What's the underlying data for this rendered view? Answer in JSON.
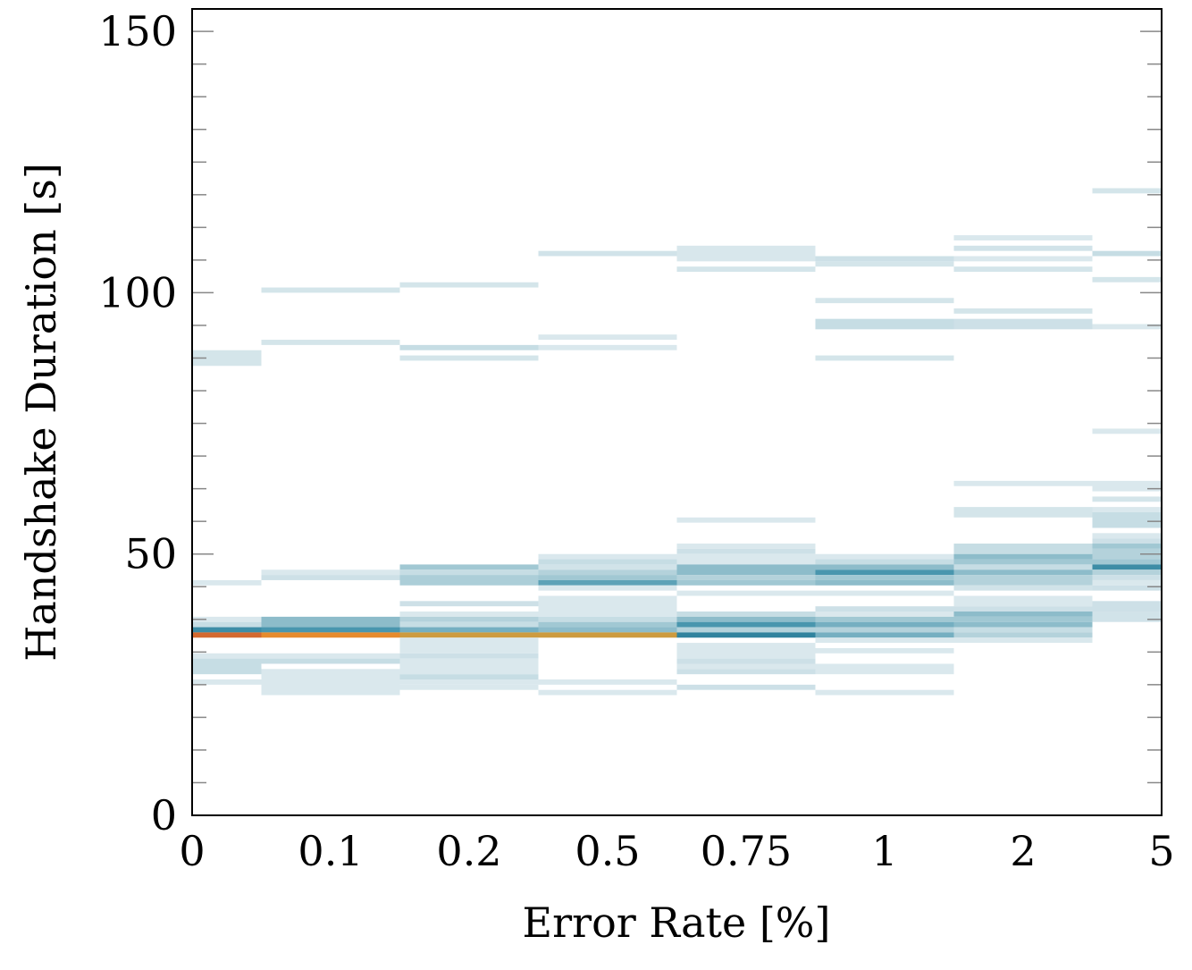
{
  "chart_data": {
    "type": "heatmap",
    "title": "",
    "xlabel": "Error Rate [%]",
    "ylabel": "Handshake Duration [s]",
    "categories": [
      "0",
      "0.1",
      "0.2",
      "0.5",
      "0.75",
      "1",
      "2",
      "5"
    ],
    "ylim": [
      0,
      154.3
    ],
    "yticks": [
      0,
      50,
      100,
      150
    ],
    "yminor_step": 6.25,
    "bin_size": 1,
    "grid": false,
    "colormap": [
      "#e3edf1",
      "#c9dee5",
      "#94c0cd",
      "#4f9ab2",
      "#2a7f9a",
      "#c4a045",
      "#e88a2c",
      "#d4692f"
    ],
    "columns": [
      {
        "category": "0",
        "cells": [
          [
            44,
            45,
            0.05
          ],
          [
            37,
            38,
            0.05
          ],
          [
            36,
            37,
            0.15
          ],
          [
            35,
            36,
            0.5
          ],
          [
            34,
            35,
            1.0
          ],
          [
            30,
            31,
            0.05
          ],
          [
            27,
            30,
            0.15
          ],
          [
            25,
            26,
            0.05
          ],
          [
            86,
            89,
            0.08
          ]
        ]
      },
      {
        "category": "0.1",
        "cells": [
          [
            46,
            47,
            0.05
          ],
          [
            45,
            46,
            0.12
          ],
          [
            36,
            38,
            0.3
          ],
          [
            35,
            36,
            0.45
          ],
          [
            34,
            35,
            0.85
          ],
          [
            30,
            31,
            0.05
          ],
          [
            29,
            30,
            0.15
          ],
          [
            23,
            28,
            0.05
          ],
          [
            90,
            91,
            0.08
          ],
          [
            100,
            101,
            0.08
          ]
        ]
      },
      {
        "category": "0.2",
        "cells": [
          [
            47,
            48,
            0.25
          ],
          [
            46,
            47,
            0.15
          ],
          [
            44,
            46,
            0.22
          ],
          [
            40,
            41,
            0.12
          ],
          [
            38,
            39,
            0.05
          ],
          [
            37,
            38,
            0.2
          ],
          [
            36,
            37,
            0.15
          ],
          [
            35,
            36,
            0.35
          ],
          [
            34,
            35,
            0.75
          ],
          [
            31,
            34,
            0.05
          ],
          [
            30,
            31,
            0.12
          ],
          [
            27,
            30,
            0.05
          ],
          [
            26,
            27,
            0.15
          ],
          [
            25,
            26,
            0.05
          ],
          [
            24,
            25,
            0.05
          ],
          [
            87,
            88,
            0.08
          ],
          [
            89,
            90,
            0.15
          ],
          [
            101,
            102,
            0.08
          ]
        ]
      },
      {
        "category": "0.5",
        "cells": [
          [
            49,
            50,
            0.05
          ],
          [
            48,
            49,
            0.15
          ],
          [
            47,
            48,
            0.1
          ],
          [
            46,
            47,
            0.2
          ],
          [
            45,
            46,
            0.25
          ],
          [
            44,
            45,
            0.4
          ],
          [
            43,
            44,
            0.05
          ],
          [
            38,
            42,
            0.05
          ],
          [
            37,
            38,
            0.15
          ],
          [
            36,
            37,
            0.25
          ],
          [
            35,
            36,
            0.3
          ],
          [
            34,
            35,
            0.75
          ],
          [
            25,
            26,
            0.05
          ],
          [
            23,
            24,
            0.05
          ],
          [
            107,
            108,
            0.1
          ],
          [
            91,
            92,
            0.05
          ],
          [
            89,
            90,
            0.05
          ]
        ]
      },
      {
        "category": "0.75",
        "cells": [
          [
            51,
            52,
            0.05
          ],
          [
            50,
            51,
            0.12
          ],
          [
            48,
            50,
            0.05
          ],
          [
            46,
            48,
            0.3
          ],
          [
            45,
            46,
            0.2
          ],
          [
            44,
            45,
            0.25
          ],
          [
            42,
            43,
            0.05
          ],
          [
            38,
            39,
            0.15
          ],
          [
            37,
            38,
            0.3
          ],
          [
            36,
            37,
            0.45
          ],
          [
            35,
            36,
            0.2
          ],
          [
            34,
            35,
            0.55
          ],
          [
            30,
            33,
            0.05
          ],
          [
            29,
            30,
            0.12
          ],
          [
            28,
            29,
            0.05
          ],
          [
            27,
            28,
            0.12
          ],
          [
            24,
            25,
            0.12
          ],
          [
            56,
            57,
            0.05
          ],
          [
            106,
            109,
            0.06
          ],
          [
            104,
            105,
            0.08
          ]
        ]
      },
      {
        "category": "1",
        "cells": [
          [
            49,
            50,
            0.05
          ],
          [
            48,
            49,
            0.15
          ],
          [
            47,
            48,
            0.3
          ],
          [
            46,
            47,
            0.45
          ],
          [
            45,
            46,
            0.25
          ],
          [
            44,
            45,
            0.3
          ],
          [
            42,
            43,
            0.05
          ],
          [
            39,
            40,
            0.12
          ],
          [
            38,
            39,
            0.05
          ],
          [
            37,
            38,
            0.25
          ],
          [
            36,
            37,
            0.35
          ],
          [
            35,
            36,
            0.2
          ],
          [
            34,
            35,
            0.35
          ],
          [
            33,
            34,
            0.05
          ],
          [
            31,
            32,
            0.05
          ],
          [
            27,
            29,
            0.05
          ],
          [
            23,
            24,
            0.05
          ],
          [
            106,
            107,
            0.12
          ],
          [
            105,
            106,
            0.08
          ],
          [
            98,
            99,
            0.08
          ],
          [
            93,
            95,
            0.15
          ],
          [
            87,
            88,
            0.08
          ]
        ]
      },
      {
        "category": "2",
        "cells": [
          [
            63,
            64,
            0.05
          ],
          [
            57,
            59,
            0.08
          ],
          [
            50,
            52,
            0.15
          ],
          [
            49,
            50,
            0.3
          ],
          [
            48,
            49,
            0.25
          ],
          [
            47,
            48,
            0.15
          ],
          [
            46,
            47,
            0.3
          ],
          [
            44,
            46,
            0.2
          ],
          [
            43,
            44,
            0.1
          ],
          [
            40,
            42,
            0.05
          ],
          [
            39,
            40,
            0.12
          ],
          [
            38,
            39,
            0.3
          ],
          [
            37,
            38,
            0.25
          ],
          [
            36,
            37,
            0.3
          ],
          [
            35,
            36,
            0.15
          ],
          [
            34,
            35,
            0.2
          ],
          [
            33,
            34,
            0.05
          ],
          [
            110,
            111,
            0.05
          ],
          [
            108,
            109,
            0.1
          ],
          [
            106,
            107,
            0.05
          ],
          [
            104,
            105,
            0.08
          ],
          [
            96,
            97,
            0.08
          ],
          [
            93,
            95,
            0.12
          ]
        ]
      },
      {
        "category": "5",
        "cells": [
          [
            62,
            64,
            0.05
          ],
          [
            60,
            61,
            0.08
          ],
          [
            58,
            59,
            0.05
          ],
          [
            55,
            58,
            0.15
          ],
          [
            53,
            54,
            0.05
          ],
          [
            52,
            53,
            0.12
          ],
          [
            51,
            52,
            0.25
          ],
          [
            49,
            51,
            0.2
          ],
          [
            48,
            49,
            0.25
          ],
          [
            47,
            48,
            0.5
          ],
          [
            46,
            47,
            0.2
          ],
          [
            45,
            46,
            0.12
          ],
          [
            44,
            45,
            0.05
          ],
          [
            43,
            44,
            0.12
          ],
          [
            39,
            41,
            0.12
          ],
          [
            37,
            39,
            0.1
          ],
          [
            73,
            74,
            0.05
          ],
          [
            93,
            94,
            0.05
          ],
          [
            102,
            103,
            0.08
          ],
          [
            107,
            108,
            0.15
          ],
          [
            119,
            120,
            0.08
          ]
        ]
      }
    ]
  }
}
